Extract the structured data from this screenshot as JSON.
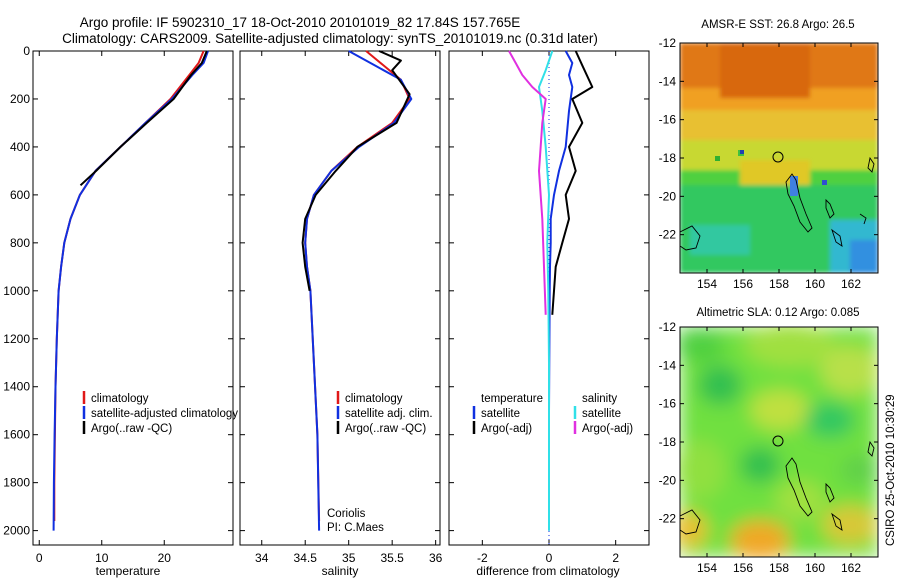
{
  "title_line1": "Argo profile: IF 5902310_17 18-Oct-2010 20101019_82 17.84S 157.765E",
  "title_line2": "Climatology: CARS2009. Satellite-adjusted climatology: synTS_20101019.nc (0.31d later)",
  "credit": "CSIRO 25-Oct-2010 10:30:29",
  "colors": {
    "climatology": "#e01818",
    "satellite": "#1030e0",
    "argo": "#000000",
    "salinity_sat": "#30e0e8",
    "salinity_argo": "#e030e0"
  },
  "chart_data": [
    {
      "type": "line",
      "xlabel": "temperature",
      "xlim": [
        -1,
        31
      ],
      "ylim": [
        2060,
        0
      ],
      "xticks": [
        0,
        10,
        20
      ],
      "yticks": [
        0,
        200,
        400,
        600,
        800,
        1000,
        1200,
        1400,
        1600,
        1800,
        2000
      ],
      "legend": [
        "climatology",
        "satellite-adjusted climatology",
        "Argo(..raw -QC)"
      ],
      "series": [
        {
          "name": "climatology",
          "color": "#e01818",
          "x": [
            26.3,
            25.5,
            24,
            21,
            17,
            13,
            9,
            6.5,
            5,
            4,
            3.5,
            3.1,
            2.8,
            2.6,
            2.5,
            2.4,
            2.4
          ],
          "y": [
            0,
            50,
            100,
            200,
            300,
            400,
            500,
            600,
            700,
            800,
            900,
            1000,
            1200,
            1400,
            1600,
            1800,
            1960
          ]
        },
        {
          "name": "satellite-adjusted climatology",
          "color": "#1030e0",
          "x": [
            27,
            26.3,
            24.5,
            21.2,
            17,
            13,
            9,
            6.5,
            5,
            4,
            3.5,
            3.1,
            2.8,
            2.6,
            2.45,
            2.35,
            2.3
          ],
          "y": [
            0,
            50,
            100,
            200,
            300,
            400,
            500,
            600,
            700,
            800,
            900,
            1000,
            1200,
            1400,
            1600,
            1800,
            2000
          ]
        },
        {
          "name": "Argo(..raw -QC)",
          "color": "#000000",
          "x": [
            26.8,
            26,
            24.3,
            21.5,
            17.2,
            13,
            9.1,
            6.6
          ],
          "y": [
            0,
            50,
            100,
            200,
            300,
            400,
            500,
            560
          ]
        }
      ]
    },
    {
      "type": "line",
      "xlabel": "salinity",
      "xlim": [
        33.75,
        36.05
      ],
      "ylim": [
        2060,
        0
      ],
      "xticks": [
        34,
        34.5,
        35,
        35.5,
        36
      ],
      "legend": [
        "climatology",
        "satellite adj. clim.",
        "Argo(..raw -QC)"
      ],
      "annotation": [
        "Coriolis",
        "PI: C.Maes"
      ],
      "series": [
        {
          "name": "climatology",
          "color": "#e01818",
          "x": [
            35.2,
            35.4,
            35.6,
            35.7,
            35.5,
            35.1,
            34.8,
            34.6,
            34.52,
            34.5,
            34.52,
            34.56,
            34.6,
            34.64,
            34.66
          ],
          "y": [
            0,
            60,
            120,
            200,
            300,
            400,
            500,
            600,
            700,
            800,
            900,
            1000,
            1300,
            1600,
            1960
          ]
        },
        {
          "name": "satellite adj. clim.",
          "color": "#1030e0",
          "x": [
            35.0,
            35.3,
            35.6,
            35.72,
            35.52,
            35.12,
            34.8,
            34.6,
            34.52,
            34.5,
            34.52,
            34.56,
            34.6,
            34.64,
            34.66
          ],
          "y": [
            0,
            60,
            120,
            200,
            300,
            400,
            500,
            600,
            700,
            800,
            900,
            1000,
            1300,
            1600,
            2000
          ]
        },
        {
          "name": "Argo(..raw -QC)",
          "color": "#000000",
          "x": [
            35.35,
            35.6,
            35.5,
            35.7,
            35.55,
            35.1,
            34.85,
            34.62,
            34.5,
            34.47,
            34.5,
            34.55
          ],
          "y": [
            0,
            40,
            80,
            180,
            300,
            400,
            500,
            600,
            700,
            800,
            900,
            1000
          ]
        }
      ]
    },
    {
      "type": "line",
      "xlabel": "difference from climatology",
      "xlim": [
        -3,
        3
      ],
      "ylim": [
        2060,
        0
      ],
      "xticks": [
        -2,
        0,
        2
      ],
      "legend_temperature": [
        "temperature",
        "satellite",
        "Argo(-adj)"
      ],
      "legend_salinity": [
        "salinity",
        "satellite",
        "Argo(-adj)"
      ],
      "series": [
        {
          "name": "temperature satellite",
          "color": "#1030e0",
          "x": [
            0.5,
            0.7,
            0.6,
            0.7,
            0.6,
            0.5,
            0.3,
            0.15,
            0.05,
            0.05,
            0.03,
            0.02,
            0.0,
            0.0
          ],
          "y": [
            0,
            50,
            100,
            150,
            250,
            400,
            500,
            600,
            700,
            800,
            900,
            1000,
            1500,
            2000
          ]
        },
        {
          "name": "temperature Argo(-adj)",
          "color": "#000000",
          "x": [
            0.8,
            1.0,
            1.3,
            0.7,
            1.0,
            0.6,
            0.8,
            0.5,
            0.6,
            0.4,
            0.2,
            0.15,
            0.1
          ],
          "y": [
            0,
            60,
            150,
            200,
            300,
            400,
            500,
            600,
            700,
            800,
            900,
            1000,
            1100
          ]
        },
        {
          "name": "salinity satellite",
          "color": "#30e0e8",
          "x": [
            0.1,
            -0.1,
            -0.3,
            -0.2,
            -0.1,
            0.0,
            -0.05,
            -0.02,
            0.0,
            0.0,
            0.0
          ],
          "y": [
            0,
            80,
            150,
            250,
            400,
            600,
            800,
            1000,
            1300,
            1600,
            2000
          ]
        },
        {
          "name": "salinity Argo(-adj)",
          "color": "#e030e0",
          "x": [
            -1.2,
            -1.0,
            -0.8,
            -0.5,
            -0.1,
            -0.2,
            -0.3,
            -0.2,
            -0.15,
            -0.1
          ],
          "y": [
            0,
            50,
            100,
            150,
            200,
            300,
            500,
            700,
            900,
            1100
          ]
        }
      ]
    },
    {
      "type": "heatmap",
      "title": "AMSR-E SST: 26.8 Argo: 26.5",
      "xlim": [
        152.5,
        163.5
      ],
      "ylim": [
        -24,
        -12
      ],
      "xticks": [
        154,
        156,
        158,
        160,
        162
      ],
      "yticks": [
        -12,
        -14,
        -16,
        -18,
        -20,
        -22
      ]
    },
    {
      "type": "heatmap",
      "title": "Altimetric SLA: 0.12 Argo: 0.085",
      "xlim": [
        152.5,
        163.5
      ],
      "ylim": [
        -24,
        -12
      ],
      "xticks": [
        154,
        156,
        158,
        160,
        162
      ],
      "yticks": [
        -12,
        -14,
        -16,
        -18,
        -20,
        -22
      ]
    }
  ]
}
